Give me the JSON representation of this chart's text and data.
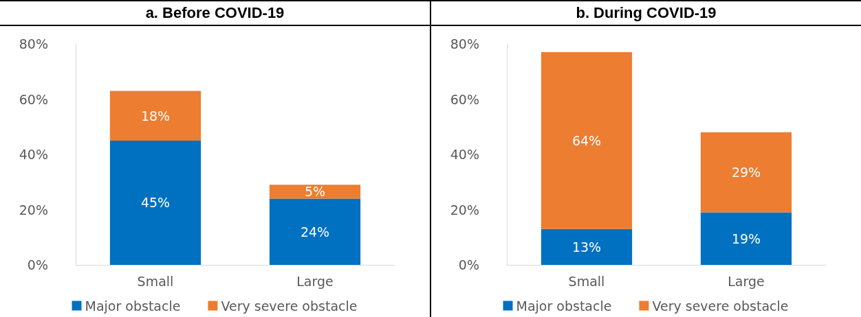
{
  "chart_data": [
    {
      "type": "bar",
      "title": "a.   Before COVID-19",
      "stacked": true,
      "categories": [
        "Small",
        "Large"
      ],
      "series": [
        {
          "name": "Major obstacle",
          "color": "#0070c0",
          "values": [
            45,
            24
          ],
          "value_labels": [
            "45%",
            "24%"
          ]
        },
        {
          "name": "Very severe obstacle",
          "color": "#ed7d31",
          "values": [
            18,
            5
          ],
          "value_labels": [
            "18%",
            "5%"
          ]
        }
      ],
      "ylim": [
        0,
        80
      ],
      "yticks": [
        {
          "value": 0,
          "label": "0%"
        },
        {
          "value": 20,
          "label": "20%"
        },
        {
          "value": 40,
          "label": "40%"
        },
        {
          "value": 60,
          "label": "60%"
        },
        {
          "value": 80,
          "label": "80%"
        }
      ],
      "grid": false,
      "legend": "bottom"
    },
    {
      "type": "bar",
      "title": "b.   During COVID-19",
      "stacked": true,
      "categories": [
        "Small",
        "Large"
      ],
      "series": [
        {
          "name": "Major obstacle",
          "color": "#0070c0",
          "values": [
            13,
            19
          ],
          "value_labels": [
            "13%",
            "19%"
          ]
        },
        {
          "name": "Very severe obstacle",
          "color": "#ed7d31",
          "values": [
            64,
            29
          ],
          "value_labels": [
            "64%",
            "29%"
          ]
        }
      ],
      "ylim": [
        0,
        80
      ],
      "yticks": [
        {
          "value": 0,
          "label": "0%"
        },
        {
          "value": 20,
          "label": "20%"
        },
        {
          "value": 40,
          "label": "40%"
        },
        {
          "value": 60,
          "label": "60%"
        },
        {
          "value": 80,
          "label": "80%"
        }
      ],
      "grid": false,
      "legend": "bottom"
    }
  ]
}
